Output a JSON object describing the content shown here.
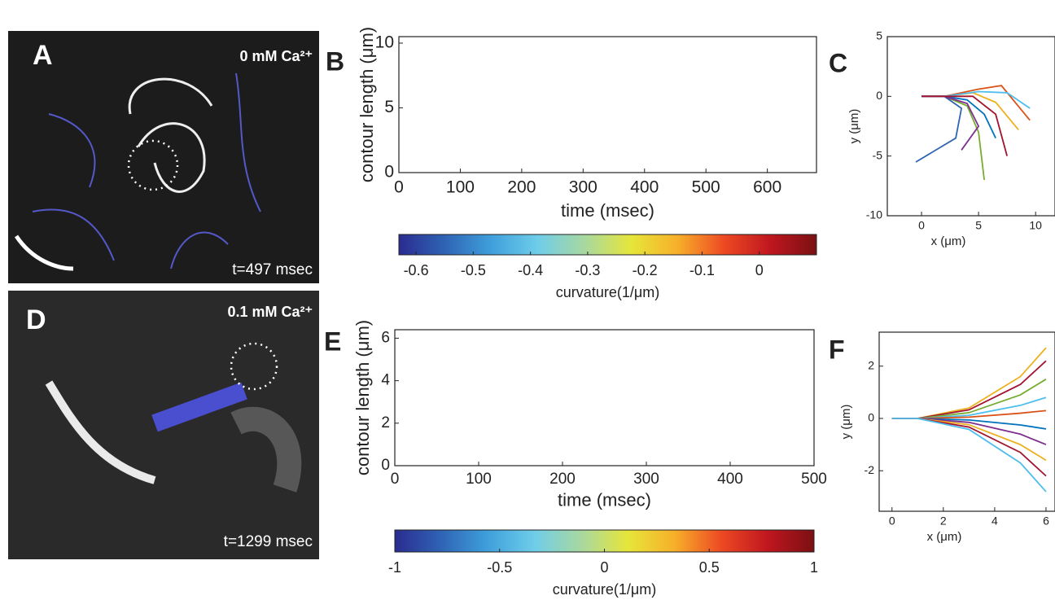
{
  "panels": {
    "A": {
      "letter": "A",
      "label": "0 mM Ca²⁺",
      "time": "t=497 msec"
    },
    "D": {
      "letter": "D",
      "label": "0.1 mM Ca²⁺",
      "time": "t=1299 msec"
    }
  },
  "colormap": [
    "#2a2c8f",
    "#2f64b5",
    "#3fa0dc",
    "#6fcde9",
    "#a8d8a0",
    "#e6e63a",
    "#f7b02a",
    "#ed4a23",
    "#c0161f",
    "#7a1013"
  ],
  "chart_data": [
    {
      "type": "heatmap",
      "letter": "B",
      "xlabel": "time (msec)",
      "ylabel": "contour length (μm)",
      "xlim": [
        0,
        680
      ],
      "xticks": [
        0,
        100,
        200,
        300,
        400,
        500,
        600
      ],
      "ylim": [
        0,
        10.5
      ],
      "yticks": [
        0,
        5,
        10
      ],
      "colorbar": {
        "label": "curvature(1/μm)",
        "lim": [
          -0.63,
          0.1
        ],
        "ticks": [
          -0.6,
          -0.5,
          -0.4,
          -0.3,
          -0.2,
          -0.1,
          0
        ]
      }
    },
    {
      "type": "line",
      "letter": "C",
      "xlabel": "x (μm)",
      "ylabel": "y (μm)",
      "xlim": [
        -3,
        11.7
      ],
      "xticks": [
        0,
        5,
        10
      ],
      "ylim": [
        -10,
        5
      ],
      "yticks": [
        -10,
        -5,
        0,
        5
      ],
      "series": [
        {
          "color": "#0072bd",
          "x": [
            0,
            2,
            4,
            5.5,
            6.5
          ],
          "y": [
            0,
            0,
            -0.3,
            -1.5,
            -3.5
          ]
        },
        {
          "color": "#d95319",
          "x": [
            0,
            2,
            5,
            7,
            9.5
          ],
          "y": [
            0,
            0,
            0.6,
            0.9,
            -2
          ]
        },
        {
          "color": "#edb120",
          "x": [
            0,
            2,
            4.5,
            6.5,
            8.5
          ],
          "y": [
            0,
            0,
            0.3,
            -0.5,
            -2.8
          ]
        },
        {
          "color": "#77ac30",
          "x": [
            0,
            2,
            4,
            5,
            5.5
          ],
          "y": [
            0,
            0,
            -0.8,
            -3,
            -7
          ]
        },
        {
          "color": "#2f64b5",
          "x": [
            0,
            2,
            3.5,
            3,
            -0.5
          ],
          "y": [
            0,
            0,
            -1,
            -3.5,
            -5.5
          ]
        },
        {
          "color": "#4dbeee",
          "x": [
            0,
            2,
            5,
            7.5,
            9.5
          ],
          "y": [
            0,
            0,
            0.4,
            0.3,
            -1
          ]
        },
        {
          "color": "#7e2f8e",
          "x": [
            0,
            2,
            4,
            5,
            3.5
          ],
          "y": [
            0,
            0,
            -0.6,
            -2.5,
            -4.5
          ]
        },
        {
          "color": "#a2142f",
          "x": [
            0,
            2,
            4.5,
            6.5,
            7.5
          ],
          "y": [
            0,
            0,
            0,
            -1.5,
            -5
          ]
        }
      ]
    },
    {
      "type": "heatmap",
      "letter": "E",
      "xlabel": "time (msec)",
      "ylabel": "contour length (μm)",
      "xlim": [
        0,
        500
      ],
      "xticks": [
        0,
        100,
        200,
        300,
        400,
        500
      ],
      "ylim": [
        0,
        6.4
      ],
      "yticks": [
        0,
        2,
        4,
        6
      ],
      "colorbar": {
        "label": "curvature(1/μm)",
        "lim": [
          -1,
          1
        ],
        "ticks": [
          -1,
          -0.5,
          0,
          0.5,
          1
        ]
      }
    },
    {
      "type": "line",
      "letter": "F",
      "xlabel": "x (μm)",
      "ylabel": "y (μm)",
      "xlim": [
        -0.5,
        6.35
      ],
      "xticks": [
        0,
        2,
        4,
        6
      ],
      "ylim": [
        -3.55,
        3.3
      ],
      "yticks": [
        -2,
        0,
        2
      ],
      "series": [
        {
          "color": "#edb120",
          "x": [
            0,
            1,
            3,
            5,
            6
          ],
          "y": [
            0,
            0,
            0.4,
            1.6,
            2.7
          ]
        },
        {
          "color": "#a2142f",
          "x": [
            0,
            1,
            3,
            5,
            6
          ],
          "y": [
            0,
            0,
            0.33,
            1.3,
            2.2
          ]
        },
        {
          "color": "#77ac30",
          "x": [
            0,
            1,
            3,
            5,
            6
          ],
          "y": [
            0,
            0,
            0.22,
            0.9,
            1.5
          ]
        },
        {
          "color": "#4dbeee",
          "x": [
            0,
            1,
            3,
            5,
            6
          ],
          "y": [
            0,
            0,
            0.12,
            0.5,
            0.8
          ]
        },
        {
          "color": "#d95319",
          "x": [
            0,
            1,
            3,
            5,
            6
          ],
          "y": [
            0,
            0,
            0.05,
            0.2,
            0.3
          ]
        },
        {
          "color": "#0072bd",
          "x": [
            0,
            1,
            3,
            5,
            6
          ],
          "y": [
            0,
            0,
            -0.06,
            -0.25,
            -0.4
          ]
        },
        {
          "color": "#7e2f8e",
          "x": [
            0,
            1,
            3,
            5,
            6
          ],
          "y": [
            0,
            0,
            -0.15,
            -0.6,
            -1
          ]
        },
        {
          "color": "#edb120",
          "x": [
            0,
            1,
            3,
            5,
            6
          ],
          "y": [
            0,
            0,
            -0.24,
            -1,
            -1.6
          ]
        },
        {
          "color": "#a2142f",
          "x": [
            0,
            1,
            3,
            5,
            6
          ],
          "y": [
            0,
            0,
            -0.33,
            -1.3,
            -2.2
          ]
        },
        {
          "color": "#4dbeee",
          "x": [
            0,
            1,
            3,
            5,
            6
          ],
          "y": [
            0,
            0,
            -0.42,
            -1.7,
            -2.8
          ]
        }
      ]
    }
  ]
}
